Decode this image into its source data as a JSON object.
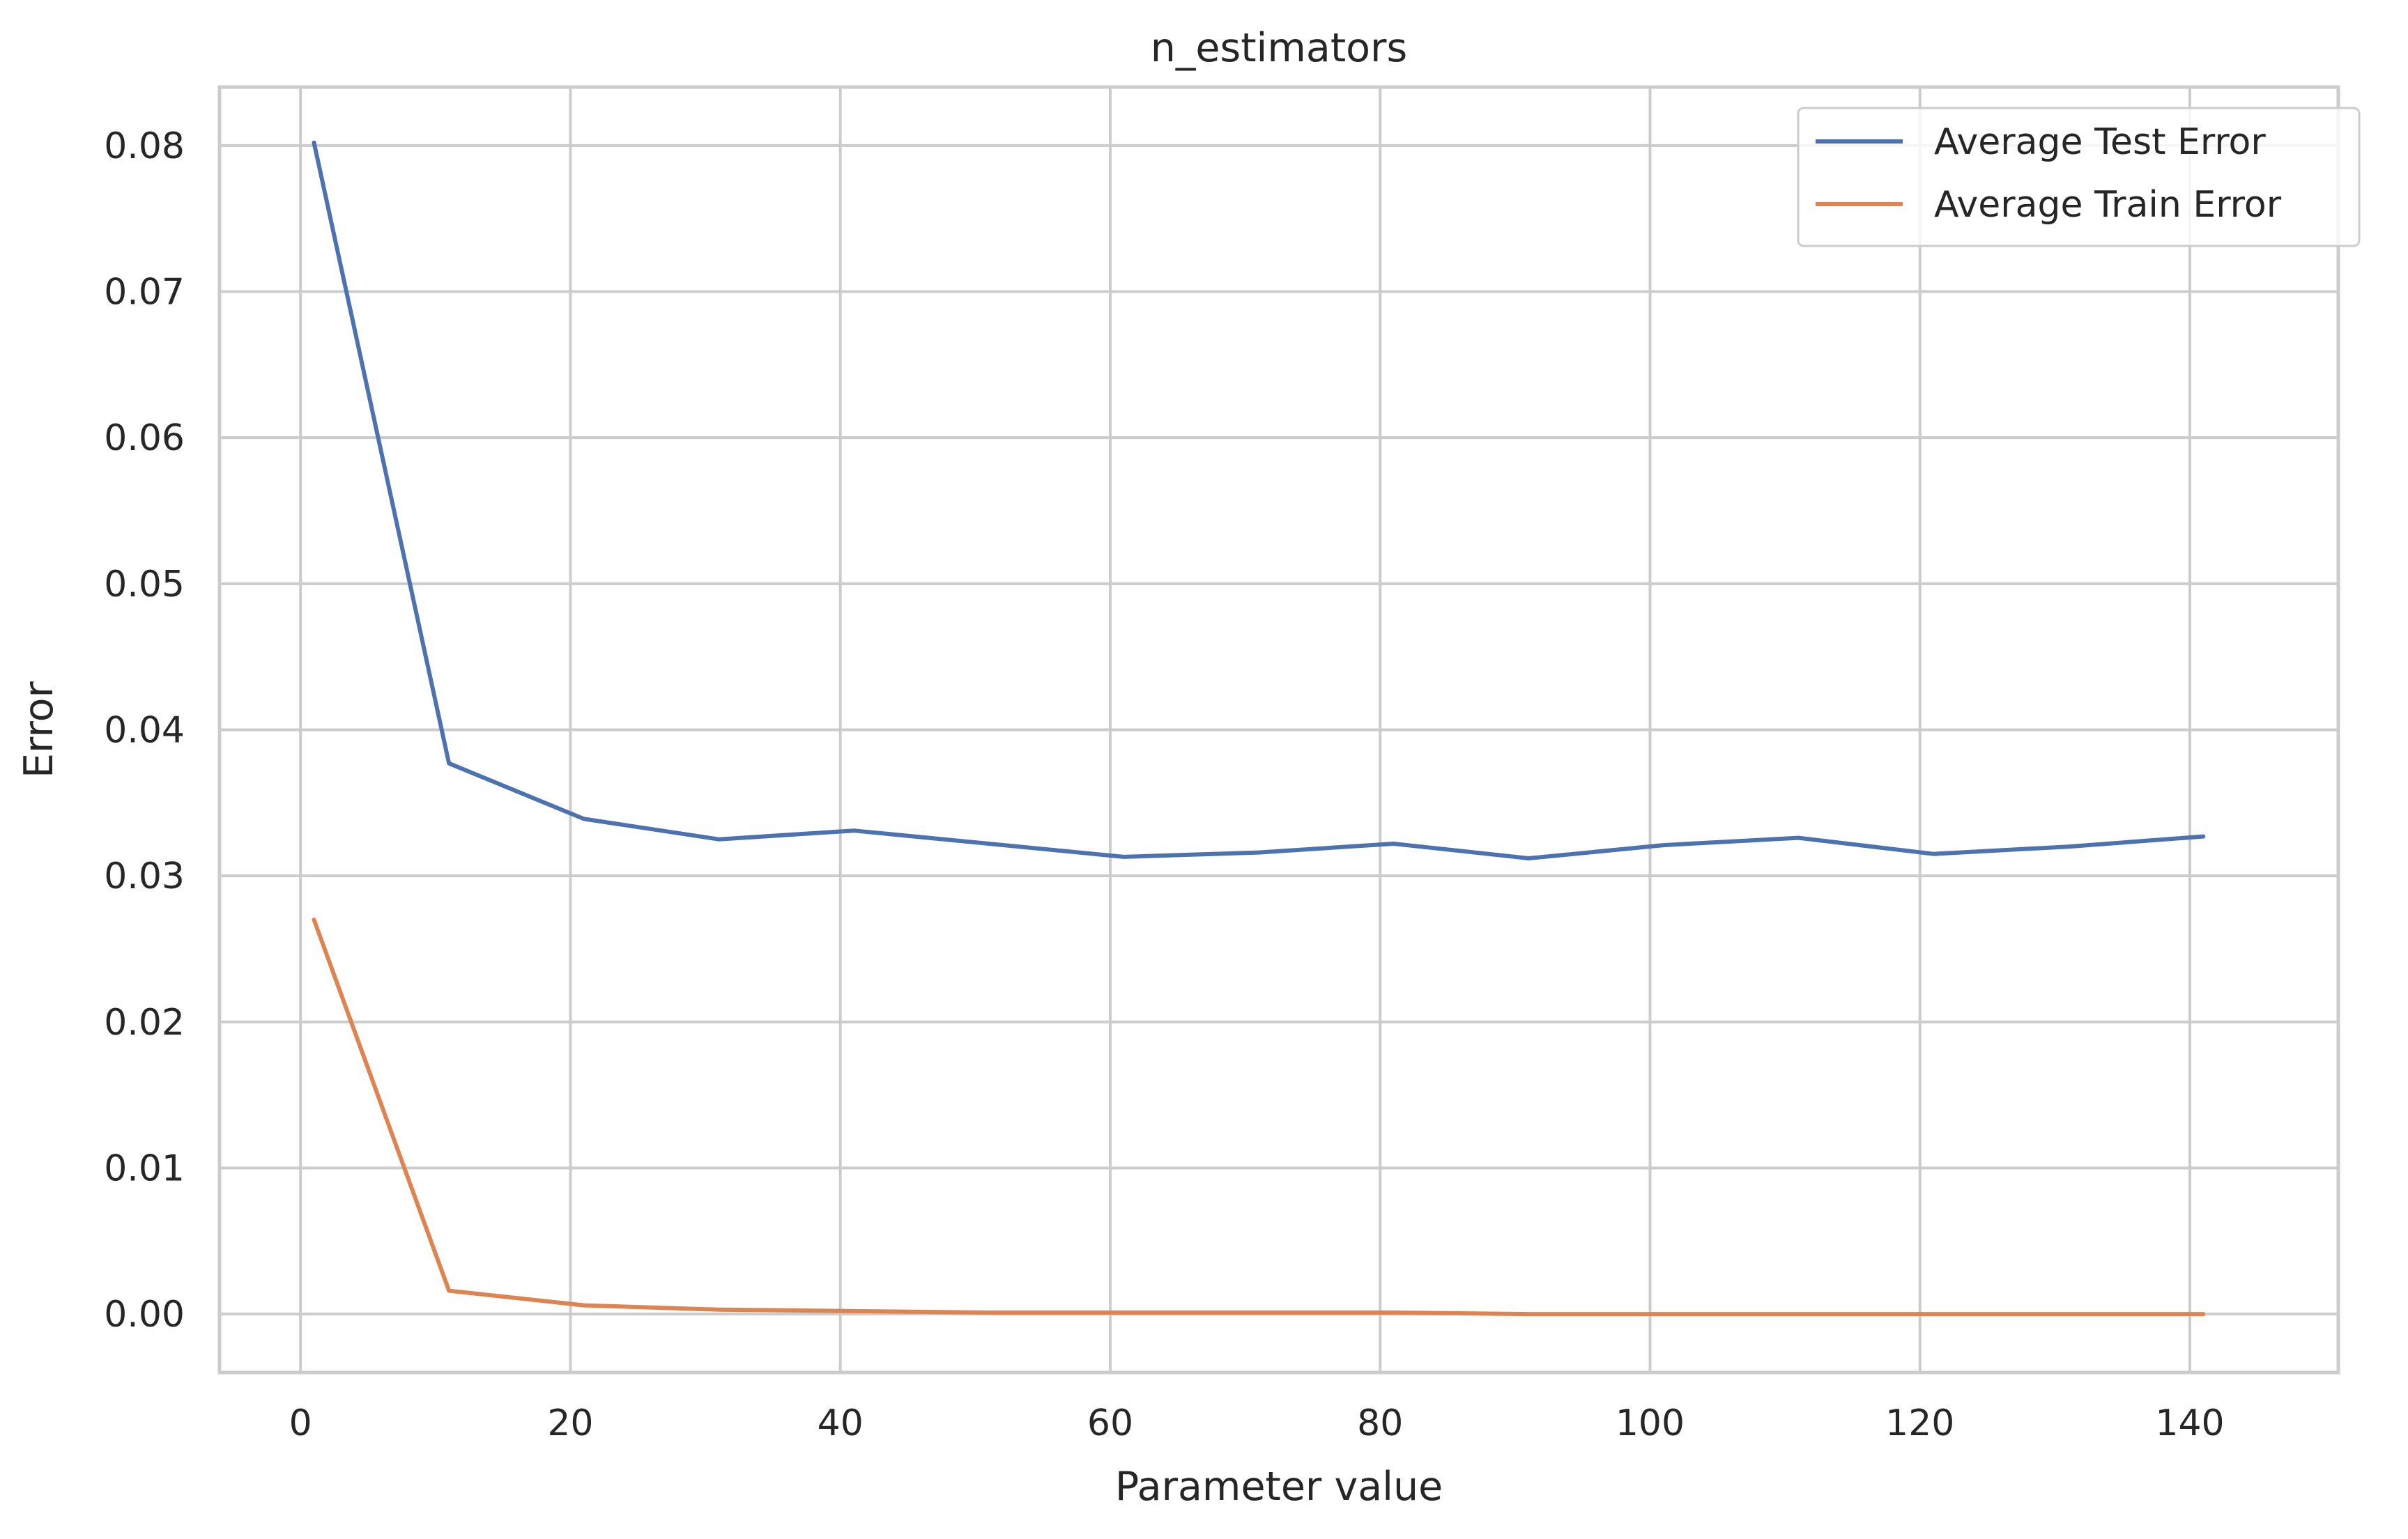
{
  "chart_data": {
    "type": "line",
    "title": "n_estimators",
    "xlabel": "Parameter value",
    "ylabel": "Error",
    "xlim": [
      -6,
      151
    ],
    "ylim": [
      -0.004,
      0.084
    ],
    "xticks": [
      0,
      20,
      40,
      60,
      80,
      100,
      120,
      140
    ],
    "xtick_labels": [
      "0",
      "20",
      "40",
      "60",
      "80",
      "100",
      "120",
      "140"
    ],
    "yticks": [
      0.0,
      0.01,
      0.02,
      0.03,
      0.04,
      0.05,
      0.06,
      0.07,
      0.08
    ],
    "ytick_labels": [
      "0.00",
      "0.01",
      "0.02",
      "0.03",
      "0.04",
      "0.05",
      "0.06",
      "0.07",
      "0.08"
    ],
    "grid": true,
    "legend_position": "top-right",
    "x": [
      1,
      11,
      21,
      31,
      41,
      51,
      61,
      71,
      81,
      91,
      101,
      111,
      121,
      131,
      141
    ],
    "series": [
      {
        "name": "Average Test Error",
        "color": "#4c72b0",
        "values": [
          0.0802,
          0.0377,
          0.0339,
          0.0325,
          0.0331,
          0.0322,
          0.0313,
          0.0316,
          0.0322,
          0.0312,
          0.0321,
          0.0326,
          0.0315,
          0.032,
          0.0327
        ]
      },
      {
        "name": "Average Train Error",
        "color": "#dd8452",
        "values": [
          0.027,
          0.0016,
          0.0006,
          0.0003,
          0.0002,
          0.0001,
          0.0001,
          0.0001,
          0.0001,
          0.0,
          0.0,
          0.0,
          0.0,
          0.0,
          0.0
        ]
      }
    ]
  },
  "style": {
    "grid_color": "#cccccc",
    "spine_color": "#cccccc",
    "text_color": "#262626"
  }
}
